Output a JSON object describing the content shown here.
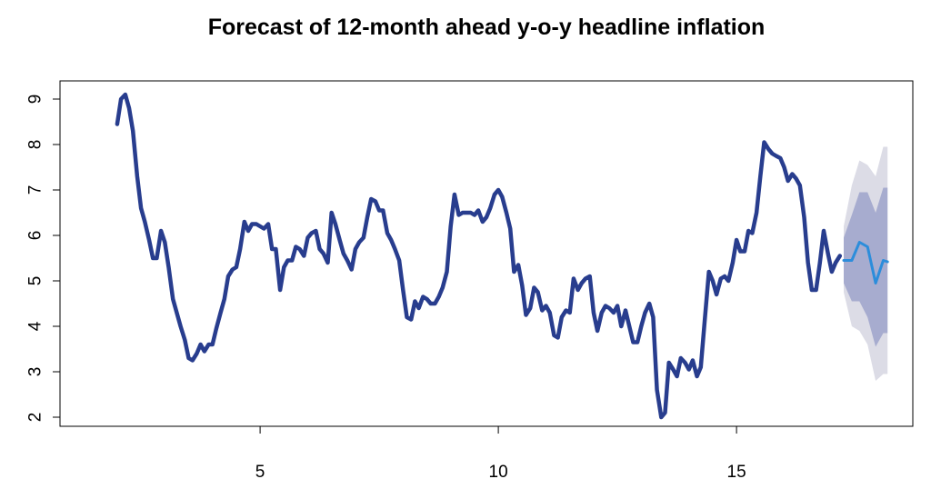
{
  "chart_data": {
    "type": "line",
    "title": "Forecast of 12-month ahead y-o-y headline inflation",
    "xlabel": "",
    "ylabel": "",
    "xlim": [
      0.8,
      18.7
    ],
    "ylim": [
      1.8,
      9.4
    ],
    "x_ticks": [
      5,
      10,
      15
    ],
    "y_ticks": [
      2,
      3,
      4,
      5,
      6,
      7,
      8,
      9
    ],
    "grid": false,
    "legend": "none",
    "colors": {
      "history": "#283D8E",
      "forecast": "#2C8DDB",
      "band_outer": "#DCDCE6",
      "band_inner": "#A7ACCF",
      "axis": "#000000"
    },
    "series": [
      {
        "role": "history",
        "x": [
          2.0,
          2.08,
          2.17,
          2.25,
          2.33,
          2.42,
          2.5,
          2.58,
          2.67,
          2.75,
          2.83,
          2.92,
          3.0,
          3.08,
          3.17,
          3.25,
          3.33,
          3.42,
          3.5,
          3.58,
          3.67,
          3.75,
          3.83,
          3.92,
          4.0,
          4.08,
          4.17,
          4.25,
          4.33,
          4.42,
          4.5,
          4.58,
          4.67,
          4.75,
          4.83,
          4.92,
          5.0,
          5.08,
          5.17,
          5.25,
          5.33,
          5.42,
          5.5,
          5.58,
          5.67,
          5.75,
          5.83,
          5.92,
          6.0,
          6.08,
          6.17,
          6.25,
          6.33,
          6.42,
          6.5,
          6.58,
          6.67,
          6.75,
          6.83,
          6.92,
          7.0,
          7.08,
          7.17,
          7.25,
          7.33,
          7.42,
          7.5,
          7.58,
          7.67,
          7.75,
          7.83,
          7.92,
          8.0,
          8.08,
          8.17,
          8.25,
          8.33,
          8.42,
          8.5,
          8.58,
          8.67,
          8.75,
          8.83,
          8.92,
          9.0,
          9.08,
          9.17,
          9.25,
          9.33,
          9.42,
          9.5,
          9.58,
          9.67,
          9.75,
          9.83,
          9.92,
          10.0,
          10.08,
          10.17,
          10.25,
          10.33,
          10.42,
          10.5,
          10.58,
          10.67,
          10.75,
          10.83,
          10.92,
          11.0,
          11.08,
          11.17,
          11.25,
          11.33,
          11.42,
          11.5,
          11.58,
          11.67,
          11.75,
          11.83,
          11.92,
          12.0,
          12.08,
          12.17,
          12.25,
          12.33,
          12.42,
          12.5,
          12.58,
          12.67,
          12.75,
          12.83,
          12.92,
          13.0,
          13.08,
          13.17,
          13.25,
          13.33,
          13.42,
          13.5,
          13.58,
          13.67,
          13.75,
          13.83,
          13.92,
          14.0,
          14.08,
          14.17,
          14.25,
          14.33,
          14.42,
          14.5,
          14.58,
          14.67,
          14.75,
          14.83,
          14.92,
          15.0,
          15.08,
          15.17,
          15.25,
          15.33,
          15.42,
          15.5,
          15.58,
          15.67,
          15.75,
          15.83,
          15.92,
          16.0,
          16.08,
          16.17,
          16.25,
          16.33,
          16.42,
          16.5,
          16.58,
          16.67,
          16.75,
          16.83,
          16.92,
          17.0,
          17.08,
          17.17
        ],
        "y": [
          8.45,
          9.0,
          9.1,
          8.8,
          8.3,
          7.3,
          6.6,
          6.3,
          5.9,
          5.5,
          5.5,
          6.1,
          5.85,
          5.3,
          4.6,
          4.3,
          4.0,
          3.7,
          3.3,
          3.25,
          3.4,
          3.6,
          3.45,
          3.6,
          3.6,
          3.95,
          4.3,
          4.6,
          5.1,
          5.25,
          5.3,
          5.7,
          6.3,
          6.1,
          6.25,
          6.25,
          6.2,
          6.15,
          6.25,
          5.7,
          5.7,
          4.8,
          5.3,
          5.45,
          5.45,
          5.75,
          5.7,
          5.55,
          5.95,
          6.05,
          6.1,
          5.7,
          5.6,
          5.4,
          6.5,
          6.25,
          5.9,
          5.6,
          5.45,
          5.25,
          5.7,
          5.85,
          5.95,
          6.4,
          6.8,
          6.75,
          6.55,
          6.55,
          6.05,
          5.9,
          5.7,
          5.45,
          4.8,
          4.2,
          4.15,
          4.55,
          4.4,
          4.65,
          4.6,
          4.5,
          4.5,
          4.65,
          4.85,
          5.2,
          6.2,
          6.9,
          6.45,
          6.5,
          6.5,
          6.5,
          6.45,
          6.55,
          6.3,
          6.4,
          6.6,
          6.9,
          7.0,
          6.85,
          6.5,
          6.15,
          5.2,
          5.35,
          4.9,
          4.25,
          4.4,
          4.85,
          4.75,
          4.35,
          4.45,
          4.3,
          3.8,
          3.75,
          4.2,
          4.35,
          4.3,
          5.05,
          4.8,
          4.95,
          5.05,
          5.1,
          4.3,
          3.9,
          4.3,
          4.45,
          4.4,
          4.3,
          4.45,
          4.0,
          4.35,
          4.0,
          3.65,
          3.65,
          4.0,
          4.3,
          4.5,
          4.2,
          2.6,
          2.0,
          2.1,
          3.2,
          3.05,
          2.9,
          3.3,
          3.2,
          3.05,
          3.25,
          2.9,
          3.1,
          4.1,
          5.2,
          5.0,
          4.7,
          5.05,
          5.1,
          5.0,
          5.4,
          5.9,
          5.65,
          5.65,
          6.1,
          6.05,
          6.5,
          7.3,
          8.05,
          7.9,
          7.8,
          7.75,
          7.7,
          7.5,
          7.2,
          7.35,
          7.25,
          7.1,
          6.4,
          5.4,
          4.8,
          4.8,
          5.4,
          6.1,
          5.6,
          5.2,
          5.4,
          5.55
        ]
      },
      {
        "role": "forecast",
        "x": [
          17.25,
          17.42,
          17.58,
          17.75,
          17.92,
          18.08,
          18.17
        ],
        "y": [
          5.45,
          5.45,
          5.85,
          5.75,
          4.95,
          5.45,
          5.42
        ],
        "lower_80": [
          4.95,
          4.55,
          4.55,
          4.2,
          3.55,
          3.85,
          3.85
        ],
        "upper_80": [
          5.95,
          6.45,
          6.95,
          6.95,
          6.5,
          7.05,
          7.05
        ],
        "lower_95": [
          4.75,
          4.0,
          3.9,
          3.6,
          2.8,
          2.95,
          2.95
        ],
        "upper_95": [
          6.2,
          7.1,
          7.65,
          7.55,
          7.3,
          7.95,
          7.95
        ]
      }
    ]
  }
}
